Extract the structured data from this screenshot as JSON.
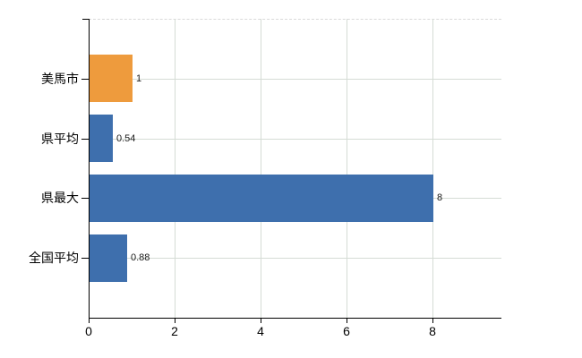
{
  "chart_data": {
    "type": "bar",
    "orientation": "horizontal",
    "title": "",
    "xlabel": "",
    "ylabel": "",
    "categories": [
      "美馬市",
      "県平均",
      "県最大",
      "全国平均"
    ],
    "values": [
      1,
      0.54,
      8,
      0.88
    ],
    "value_labels": [
      "1",
      "0.54",
      "8",
      "0.88"
    ],
    "bar_colors": [
      "#EE9B3D",
      "#3E6FAD",
      "#3E6FAD",
      "#3E6FAD"
    ],
    "x_tick_labels": [
      "0",
      "2",
      "4",
      "6",
      "8"
    ],
    "x_tick_values": [
      0,
      2,
      4,
      6,
      8
    ],
    "xlim": [
      0,
      9.6
    ],
    "grid": true,
    "legend": false,
    "colors": {
      "highlight_bar": "#EE9B3D",
      "default_bar": "#3E6FAD",
      "gridline": "#D5DCD5",
      "top_border_dashed": "#D9D9D9",
      "axis": "#000000",
      "text": "#000000",
      "background": "#FFFFFF"
    }
  }
}
